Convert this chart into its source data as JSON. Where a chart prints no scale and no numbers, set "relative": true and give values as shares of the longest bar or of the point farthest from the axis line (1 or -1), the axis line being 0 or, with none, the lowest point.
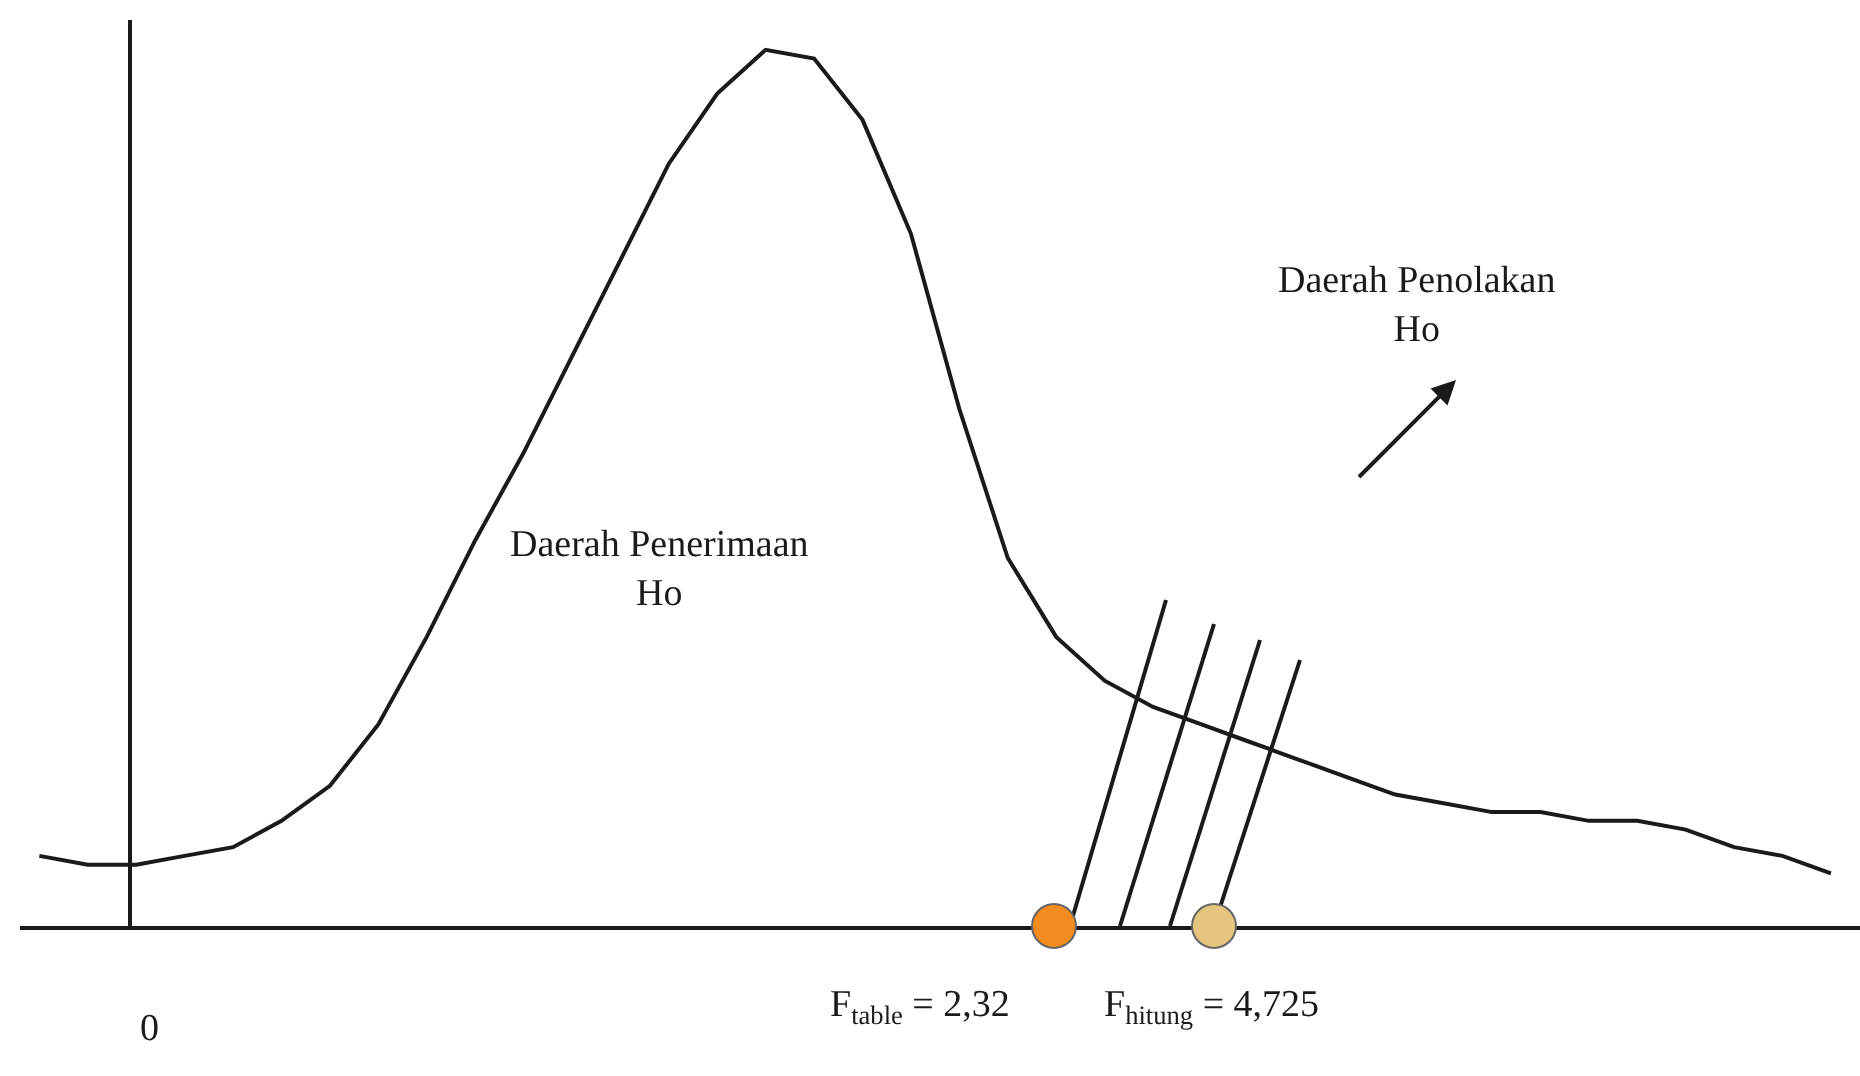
{
  "chart_data": {
    "type": "line",
    "relative": true,
    "categories": [
      null,
      null,
      null,
      null,
      null,
      null,
      null,
      null,
      null,
      null,
      null,
      null,
      null,
      null,
      null,
      null,
      null,
      null,
      null,
      null,
      null,
      null,
      null,
      null,
      null,
      null,
      null,
      null,
      null,
      null,
      null,
      null,
      null,
      null,
      null,
      null,
      null,
      null
    ],
    "series": [
      {
        "color": "#1a1a1a",
        "values": [
          0.08,
          0.07,
          0.07,
          0.08,
          0.09,
          0.12,
          0.16,
          0.23,
          0.33,
          0.44,
          0.54,
          0.65,
          0.76,
          0.87,
          0.95,
          1.0,
          0.99,
          0.92,
          0.79,
          0.59,
          0.42,
          0.33,
          0.28,
          0.25,
          0.23,
          0.21,
          0.19,
          0.17,
          0.15,
          0.14,
          0.13,
          0.13,
          0.12,
          0.12,
          0.11,
          0.09,
          0.08,
          0.06
        ]
      }
    ],
    "annotations": [
      "Daerah Penerimaan\nHo",
      "Daerah Penolakan\nHo",
      "0",
      "F$_{table}$ = 2,32",
      "F$_{hitung}$ = 4,725"
    ],
    "tick_labels": false
  }
}
